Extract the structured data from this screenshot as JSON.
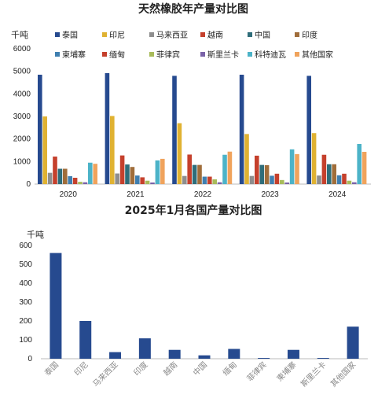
{
  "chart_data": [
    {
      "type": "bar",
      "title": "天然橡胶年产量对比图",
      "ylabel": "千吨",
      "ylim": [
        0,
        6000
      ],
      "yticks": [
        0,
        1000,
        2000,
        3000,
        4000,
        5000,
        6000
      ],
      "categories": [
        "2020",
        "2021",
        "2022",
        "2023",
        "2024"
      ],
      "legend_position": "top",
      "grid": false,
      "series": [
        {
          "name": "泰国",
          "color": "#264a8f",
          "values": [
            4850,
            4920,
            4800,
            4850,
            4800
          ]
        },
        {
          "name": "印尼",
          "color": "#e0b232",
          "values": [
            3000,
            3020,
            2700,
            2220,
            2260
          ]
        },
        {
          "name": "马来西亚",
          "color": "#8e8e8e",
          "values": [
            500,
            470,
            360,
            360,
            380
          ]
        },
        {
          "name": "越南",
          "color": "#c5402c",
          "values": [
            1220,
            1270,
            1310,
            1260,
            1300
          ]
        },
        {
          "name": "中国",
          "color": "#2f6d7a",
          "values": [
            680,
            870,
            850,
            850,
            880
          ]
        },
        {
          "name": "印度",
          "color": "#a06d3a",
          "values": [
            680,
            760,
            850,
            840,
            880
          ]
        },
        {
          "name": "柬埔寨",
          "color": "#3f7fb0",
          "values": [
            350,
            380,
            330,
            370,
            390
          ]
        },
        {
          "name": "缅甸",
          "color": "#c5402c",
          "values": [
            280,
            300,
            330,
            460,
            460
          ]
        },
        {
          "name": "菲律宾",
          "color": "#a8bb5a",
          "values": [
            100,
            150,
            210,
            180,
            150
          ]
        },
        {
          "name": "斯里兰卡",
          "color": "#7a63a8",
          "values": [
            80,
            70,
            80,
            70,
            80
          ]
        },
        {
          "name": "科特迪瓦",
          "color": "#4cb3c8",
          "values": [
            950,
            1050,
            1300,
            1540,
            1780
          ]
        },
        {
          "name": "其他国家",
          "color": "#f0a35c",
          "values": [
            900,
            1120,
            1440,
            1330,
            1430
          ]
        }
      ]
    },
    {
      "type": "bar",
      "title": "2025年1月各国产量对比图",
      "ylabel": "千吨",
      "ylim": [
        0,
        600
      ],
      "yticks": [
        0,
        100,
        200,
        300,
        400,
        500,
        600
      ],
      "categories": [
        "泰国",
        "印尼",
        "马来西亚",
        "印度",
        "越南",
        "中国",
        "缅甸",
        "菲律宾",
        "柬埔寨",
        "斯里兰卡",
        "其他国家"
      ],
      "values": [
        560,
        200,
        35,
        108,
        47,
        18,
        52,
        4,
        47,
        4,
        170
      ],
      "bar_color": "#264a8f",
      "grid": false
    }
  ]
}
